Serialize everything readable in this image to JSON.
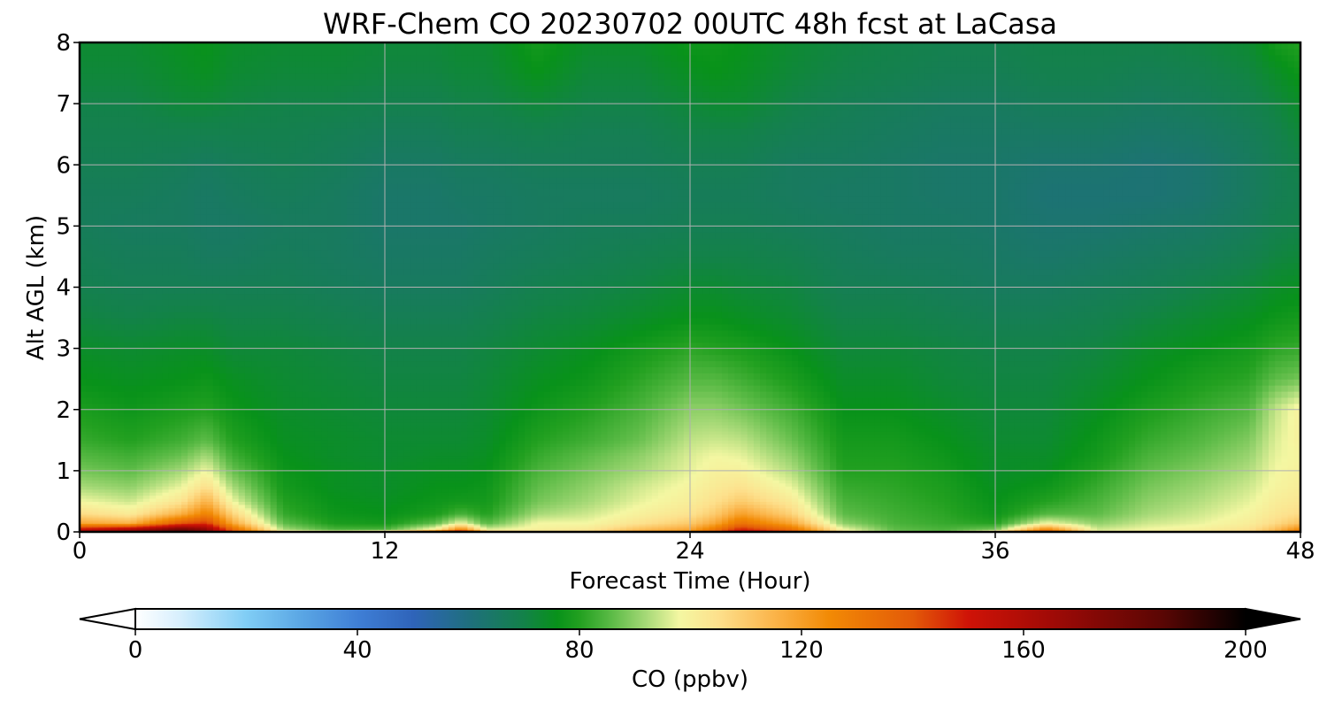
{
  "chart_data": {
    "type": "heatmap",
    "subtype": "filled-contour time-height cross-section",
    "title": "WRF-Chem CO  20230702 00UTC 48h fcst at LaCasa",
    "xlabel": "Forecast Time (Hour)",
    "ylabel": "Alt AGL (km)",
    "xlim": [
      0,
      48
    ],
    "ylim": [
      0,
      8
    ],
    "x_ticks": [
      0,
      12,
      24,
      36,
      48
    ],
    "y_ticks": [
      0,
      1,
      2,
      3,
      4,
      5,
      6,
      7,
      8
    ],
    "grid": true,
    "x_hours": [
      0,
      2,
      4,
      5,
      6,
      8,
      10,
      12,
      14,
      15,
      16,
      18,
      20,
      22,
      24,
      25,
      26,
      28,
      30,
      32,
      34,
      36,
      38,
      40,
      42,
      44,
      46,
      47,
      48
    ],
    "y_km": [
      0,
      0.05,
      0.15,
      0.3,
      0.5,
      0.75,
      1,
      1.25,
      1.5,
      2,
      2.5,
      3,
      3.5,
      4,
      4.5,
      5,
      5.5,
      6,
      6.5,
      7,
      7.5,
      8
    ],
    "profiles_ppbv": [
      [
        175,
        152,
        118,
        106,
        98,
        92,
        88,
        85,
        82,
        79,
        76,
        74,
        71,
        69,
        68,
        67,
        67,
        68,
        69,
        70,
        72,
        73
      ],
      [
        182,
        160,
        115,
        102,
        95,
        90,
        86,
        83,
        80,
        77,
        75,
        73,
        70,
        68,
        67,
        66,
        67,
        68,
        69,
        70,
        72,
        73
      ],
      [
        197,
        178,
        140,
        116,
        104,
        97,
        92,
        87,
        83,
        79,
        76,
        74,
        71,
        68,
        67,
        66,
        66,
        67,
        69,
        72,
        74,
        75
      ],
      [
        180,
        168,
        145,
        128,
        116,
        105,
        98,
        92,
        86,
        80,
        77,
        74,
        71,
        68,
        66,
        65,
        65,
        66,
        69,
        72,
        75,
        76
      ],
      [
        150,
        135,
        118,
        108,
        98,
        92,
        87,
        83,
        80,
        77,
        75,
        72,
        70,
        68,
        66,
        65,
        66,
        67,
        69,
        71,
        73,
        74
      ],
      [
        110,
        92,
        86,
        82,
        80,
        78,
        77,
        76,
        75,
        74,
        73,
        72,
        70,
        68,
        67,
        66,
        67,
        68,
        69,
        70,
        72,
        73
      ],
      [
        108,
        84,
        79,
        77,
        76,
        75,
        75,
        74,
        74,
        73,
        72,
        71,
        69,
        67,
        66,
        66,
        66,
        67,
        68,
        70,
        72,
        73
      ],
      [
        118,
        84,
        78,
        76,
        75,
        74,
        74,
        73,
        73,
        72,
        71,
        70,
        68,
        66,
        65,
        64,
        64,
        65,
        67,
        69,
        71,
        72
      ],
      [
        150,
        100,
        86,
        79,
        77,
        76,
        75,
        74,
        73,
        72,
        71,
        70,
        68,
        66,
        65,
        64,
        64,
        65,
        67,
        69,
        71,
        72
      ],
      [
        178,
        125,
        98,
        84,
        78,
        76,
        75,
        74,
        73,
        72,
        71,
        70,
        68,
        66,
        65,
        64,
        65,
        66,
        68,
        70,
        72,
        73
      ],
      [
        120,
        96,
        85,
        80,
        78,
        77,
        76,
        75,
        74,
        73,
        72,
        71,
        69,
        67,
        66,
        65,
        65,
        66,
        68,
        70,
        72,
        73
      ],
      [
        108,
        100,
        98,
        92,
        88,
        86,
        84,
        82,
        80,
        77,
        75,
        73,
        71,
        69,
        67,
        66,
        66,
        67,
        69,
        72,
        76,
        78
      ],
      [
        110,
        102,
        98,
        95,
        92,
        90,
        88,
        86,
        83,
        80,
        77,
        75,
        72,
        70,
        68,
        67,
        66,
        67,
        68,
        70,
        72,
        74
      ],
      [
        125,
        112,
        104,
        100,
        97,
        95,
        92,
        90,
        87,
        84,
        81,
        78,
        74,
        71,
        69,
        67,
        66,
        67,
        68,
        70,
        72,
        74
      ],
      [
        130,
        118,
        110,
        104,
        101,
        99,
        97,
        96,
        94,
        90,
        85,
        81,
        76,
        73,
        70,
        68,
        67,
        68,
        70,
        72,
        75,
        77
      ],
      [
        145,
        130,
        118,
        110,
        105,
        102,
        100,
        98,
        95,
        90,
        85,
        80,
        76,
        73,
        70,
        68,
        67,
        68,
        70,
        73,
        76,
        77
      ],
      [
        165,
        148,
        132,
        120,
        110,
        104,
        100,
        97,
        94,
        88,
        83,
        79,
        75,
        72,
        70,
        68,
        67,
        68,
        70,
        73,
        75,
        76
      ],
      [
        150,
        132,
        118,
        108,
        102,
        97,
        93,
        90,
        87,
        83,
        79,
        76,
        73,
        71,
        69,
        67,
        66,
        66,
        68,
        70,
        72,
        73
      ],
      [
        105,
        98,
        90,
        86,
        84,
        82,
        80,
        79,
        78,
        76,
        74,
        72,
        70,
        68,
        67,
        66,
        65,
        66,
        67,
        68,
        70,
        71
      ],
      [
        90,
        86,
        84,
        83,
        82,
        81,
        80,
        79,
        78,
        76,
        74,
        72,
        70,
        68,
        66,
        65,
        65,
        65,
        66,
        67,
        69,
        70
      ],
      [
        88,
        84,
        82,
        81,
        80,
        79,
        78,
        77,
        76,
        74,
        72,
        71,
        69,
        67,
        66,
        65,
        64,
        64,
        65,
        66,
        68,
        69
      ],
      [
        112,
        88,
        80,
        77,
        76,
        75,
        74,
        74,
        73,
        72,
        71,
        70,
        68,
        66,
        65,
        64,
        64,
        64,
        65,
        66,
        68,
        69
      ],
      [
        155,
        125,
        98,
        85,
        80,
        77,
        75,
        74,
        73,
        72,
        71,
        70,
        68,
        66,
        64,
        63,
        62,
        63,
        65,
        67,
        69,
        70
      ],
      [
        100,
        95,
        90,
        86,
        84,
        82,
        80,
        78,
        77,
        75,
        73,
        71,
        69,
        67,
        65,
        63,
        62,
        63,
        65,
        67,
        69,
        70
      ],
      [
        102,
        98,
        95,
        92,
        90,
        88,
        86,
        84,
        82,
        79,
        76,
        74,
        71,
        68,
        66,
        64,
        62,
        62,
        64,
        66,
        68,
        70
      ],
      [
        104,
        100,
        97,
        95,
        93,
        91,
        89,
        87,
        85,
        82,
        79,
        76,
        73,
        70,
        67,
        65,
        63,
        63,
        65,
        67,
        69,
        71
      ],
      [
        108,
        104,
        101,
        99,
        97,
        95,
        93,
        91,
        89,
        85,
        81,
        78,
        75,
        72,
        69,
        67,
        66,
        66,
        67,
        69,
        71,
        73
      ],
      [
        120,
        112,
        106,
        103,
        101,
        99,
        98,
        97,
        96,
        94,
        86,
        81,
        77,
        74,
        71,
        69,
        68,
        68,
        69,
        71,
        74,
        78
      ],
      [
        145,
        125,
        112,
        106,
        103,
        101,
        100,
        99,
        100,
        100,
        88,
        82,
        78,
        75,
        72,
        70,
        69,
        70,
        72,
        74,
        77,
        80
      ]
    ],
    "colorbar": {
      "label": "CO  (ppbv)",
      "ticks": [
        0,
        40,
        80,
        120,
        160,
        200
      ],
      "range": [
        0,
        200
      ],
      "extend": "both",
      "colormap_stops": [
        {
          "v": 0,
          "c": "#ffffff"
        },
        {
          "v": 8,
          "c": "#d7effd"
        },
        {
          "v": 20,
          "c": "#80cdf5"
        },
        {
          "v": 30,
          "c": "#5aa6e4"
        },
        {
          "v": 40,
          "c": "#3f7fd6"
        },
        {
          "v": 50,
          "c": "#2f64ba"
        },
        {
          "v": 60,
          "c": "#1f6f7e"
        },
        {
          "v": 70,
          "c": "#138249"
        },
        {
          "v": 76,
          "c": "#08921a"
        },
        {
          "v": 80,
          "c": "#22a020"
        },
        {
          "v": 86,
          "c": "#5ebc48"
        },
        {
          "v": 92,
          "c": "#a6d977"
        },
        {
          "v": 98,
          "c": "#f4f7a2"
        },
        {
          "v": 105,
          "c": "#fde08c"
        },
        {
          "v": 115,
          "c": "#fbb44a"
        },
        {
          "v": 125,
          "c": "#f28a05"
        },
        {
          "v": 140,
          "c": "#e35a08"
        },
        {
          "v": 150,
          "c": "#cf1307"
        },
        {
          "v": 165,
          "c": "#a00a06"
        },
        {
          "v": 185,
          "c": "#5a0604"
        },
        {
          "v": 200,
          "c": "#000000"
        }
      ]
    }
  }
}
